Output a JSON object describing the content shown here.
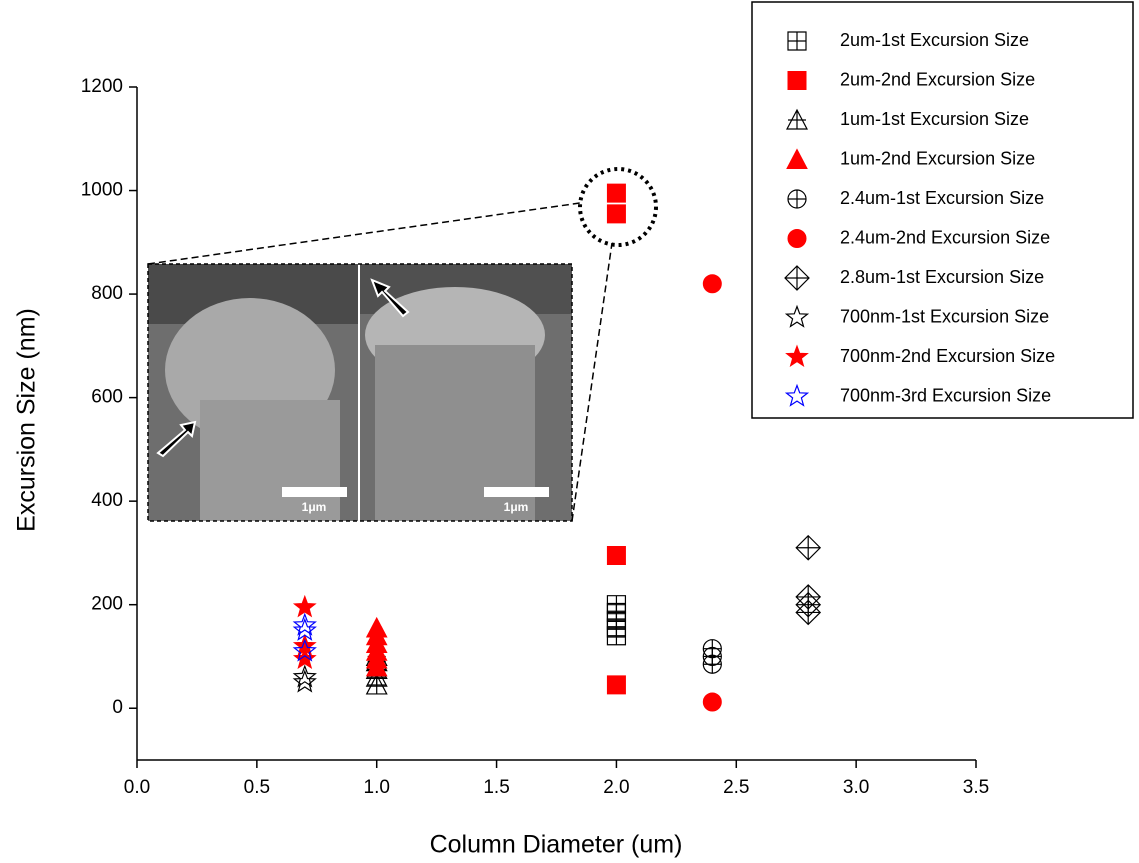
{
  "chart_data": {
    "type": "scatter",
    "x_label": "Column Diameter (um)",
    "y_label": "Excursion Size (nm)",
    "xlim": [
      0,
      3.5
    ],
    "ylim": [
      -100,
      1200
    ],
    "xticks": [
      {
        "value": 0,
        "label": "0.0"
      },
      0.5,
      {
        "value": 1,
        "label": "1.0"
      },
      1.5,
      {
        "value": 2,
        "label": "2.0"
      },
      2.5,
      {
        "value": 3,
        "label": "3.0"
      },
      3.5
    ],
    "yticks": [
      0,
      200,
      400,
      600,
      800,
      1000,
      1200
    ],
    "legend": "upper right",
    "annotations": [
      "1μm",
      "1μm"
    ],
    "series": [
      {
        "name": "2um-1st Excursion Size",
        "color": "#000000",
        "marker": "square-cross",
        "filled": false,
        "x": [
          2,
          2,
          2,
          2,
          2
        ],
        "values": [
          140,
          155,
          170,
          185,
          200
        ]
      },
      {
        "name": "2um-2nd Excursion Size",
        "color": "#ff0000",
        "marker": "square",
        "filled": true,
        "x": [
          2,
          2,
          2,
          2
        ],
        "values": [
          995,
          955,
          295,
          45
        ]
      },
      {
        "name": "1um-1st Excursion Size",
        "color": "#000000",
        "marker": "triangle-cross",
        "filled": false,
        "x": [
          1,
          1,
          1,
          1,
          1
        ],
        "values": [
          45,
          60,
          75,
          90,
          100
        ]
      },
      {
        "name": "1um-2nd Excursion Size",
        "color": "#ff0000",
        "marker": "triangle",
        "filled": true,
        "x": [
          1,
          1,
          1,
          1,
          1,
          1
        ],
        "values": [
          155,
          140,
          125,
          110,
          95,
          80
        ]
      },
      {
        "name": "2.4um-1st Excursion Size",
        "color": "#000000",
        "marker": "circle-cross",
        "filled": false,
        "x": [
          2.4,
          2.4,
          2.4
        ],
        "values": [
          115,
          100,
          85
        ]
      },
      {
        "name": "2.4um-2nd Excursion Size",
        "color": "#ff0000",
        "marker": "circle",
        "filled": true,
        "x": [
          2.4,
          2.4
        ],
        "values": [
          820,
          12
        ]
      },
      {
        "name": "2.8um-1st Excursion Size",
        "color": "#000000",
        "marker": "diamond-cross",
        "filled": false,
        "x": [
          2.8,
          2.8,
          2.8,
          2.8
        ],
        "values": [
          310,
          215,
          200,
          185
        ]
      },
      {
        "name": "700nm-1st Excursion Size",
        "color": "#000000",
        "marker": "star",
        "filled": false,
        "x": [
          0.7,
          0.7
        ],
        "values": [
          50,
          60
        ]
      },
      {
        "name": "700nm-2nd Excursion Size",
        "color": "#ff0000",
        "marker": "star",
        "filled": true,
        "x": [
          0.7,
          0.7,
          0.7
        ],
        "values": [
          195,
          120,
          95
        ]
      },
      {
        "name": "700nm-3rd Excursion Size",
        "color": "#0000ff",
        "marker": "star",
        "filled": false,
        "x": [
          0.7,
          0.7,
          0.7
        ],
        "values": [
          160,
          150,
          110
        ]
      }
    ]
  }
}
